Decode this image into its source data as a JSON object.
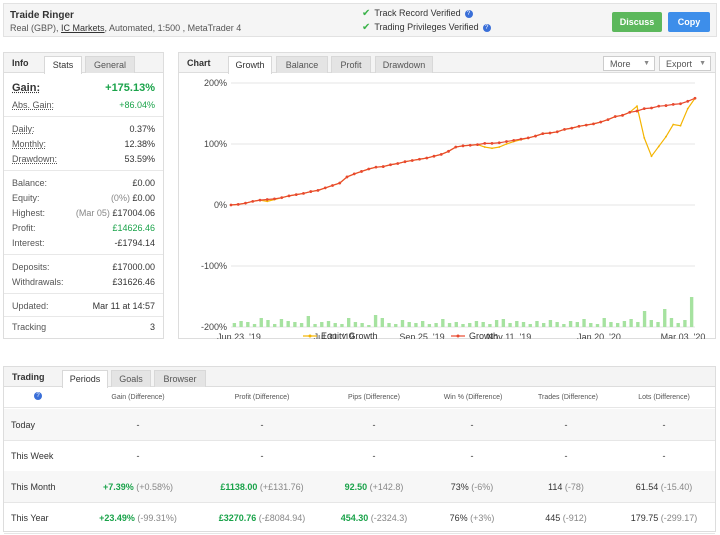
{
  "header": {
    "account_name": "Traide Ringer",
    "account_prefix": "Real (GBP),",
    "broker": "IC Markets",
    "account_suffix": ", Automated, 1:500 , MetaTrader 4",
    "verification": [
      "Track Record Verified",
      "Trading Privileges Verified"
    ],
    "discuss_label": "Discuss",
    "copy_label": "Copy"
  },
  "info_tabs": {
    "title": "Info",
    "tabs": [
      "Stats",
      "General"
    ]
  },
  "stats": {
    "gain_label": "Gain:",
    "gain_value": "+175.13%",
    "abs_gain_label": "Abs. Gain:",
    "abs_gain_value": "+86.04%",
    "daily_label": "Daily:",
    "daily_value": "0.37%",
    "monthly_label": "Monthly:",
    "monthly_value": "12.38%",
    "drawdown_label": "Drawdown:",
    "drawdown_value": "53.59%",
    "balance_label": "Balance:",
    "balance_value": "£0.00",
    "equity_label": "Equity:",
    "equity_pct": "(0%)",
    "equity_value": "£0.00",
    "highest_label": "Highest:",
    "highest_date": "(Mar 05)",
    "highest_value": "£17004.06",
    "profit_label": "Profit:",
    "profit_value": "£14626.46",
    "interest_label": "Interest:",
    "interest_value": "-£1794.14",
    "deposits_label": "Deposits:",
    "deposits_value": "£17000.00",
    "withdrawals_label": "Withdrawals:",
    "withdrawals_value": "£31626.46",
    "updated_label": "Updated:",
    "updated_value": "Mar 11 at 14:57",
    "tracking_label": "Tracking",
    "tracking_value": "3"
  },
  "chart_tabs": {
    "title": "Chart",
    "tabs": [
      "Growth",
      "Balance",
      "Profit",
      "Drawdown"
    ],
    "more": "More",
    "export": "Export"
  },
  "colors": {
    "growth": "#e8492f",
    "equity": "#f4b400",
    "bars": "#a6e2a0",
    "green": "#1aa34a",
    "accent": "#3d8eea"
  },
  "chart_data": {
    "type": "line",
    "yticks": [
      "200%",
      "100%",
      "0%",
      "-100%",
      "-200%"
    ],
    "ylim": [
      -200,
      200
    ],
    "xticks": [
      "Jun 23, '19",
      "Jul 31, '19",
      "Sep 25, '19",
      "Nov 11, '19",
      "Jan 20, '20",
      "Mar 03, '20"
    ],
    "series": [
      {
        "name": "Equity Growth",
        "values": [
          0,
          1,
          3,
          6,
          8,
          6,
          9,
          12,
          15,
          17,
          19,
          22,
          24,
          28,
          32,
          36,
          46,
          51,
          55,
          59,
          62,
          63,
          66,
          68,
          71,
          73,
          75,
          77,
          80,
          83,
          88,
          95,
          97,
          98,
          99,
          95,
          93,
          95,
          100,
          104,
          107,
          110,
          113,
          117,
          118,
          120,
          124,
          126,
          129,
          131,
          133,
          136,
          140,
          145,
          147,
          152,
          162,
          110,
          80,
          96,
          112,
          132,
          130,
          158,
          175
        ]
      },
      {
        "name": "Growth",
        "values": [
          0,
          1,
          3,
          6,
          8,
          9,
          10,
          12,
          15,
          17,
          19,
          22,
          24,
          28,
          32,
          36,
          46,
          51,
          55,
          59,
          62,
          63,
          66,
          68,
          71,
          73,
          75,
          77,
          80,
          83,
          88,
          95,
          97,
          98,
          99,
          101,
          101,
          102,
          104,
          106,
          108,
          110,
          113,
          117,
          118,
          120,
          124,
          126,
          129,
          131,
          133,
          136,
          140,
          145,
          147,
          152,
          154,
          158,
          159,
          162,
          163,
          165,
          166,
          170,
          175
        ]
      }
    ],
    "bars": [
      4,
      6,
      5,
      3,
      9,
      7,
      3,
      8,
      6,
      5,
      4,
      11,
      3,
      5,
      6,
      4,
      3,
      9,
      5,
      4,
      2,
      12,
      9,
      4,
      3,
      7,
      5,
      4,
      6,
      3,
      4,
      8,
      4,
      5,
      3,
      4,
      6,
      5,
      3,
      7,
      8,
      4,
      6,
      5,
      3,
      6,
      4,
      7,
      5,
      3,
      6,
      5,
      8,
      4,
      3,
      9,
      5,
      4,
      6,
      8,
      5,
      16,
      7,
      5,
      18,
      9,
      4,
      7,
      30
    ]
  },
  "trading_tabs": {
    "title": "Trading",
    "tabs": [
      "Periods",
      "Goals",
      "Browser"
    ]
  },
  "trading": {
    "headers": [
      "Gain (Difference)",
      "Profit (Difference)",
      "Pips (Difference)",
      "Win % (Difference)",
      "Trades (Difference)",
      "Lots (Difference)"
    ],
    "rows": [
      {
        "label": "Today",
        "gain": "-",
        "gain_d": "",
        "profit": "-",
        "profit_d": "",
        "pips": "-",
        "pips_d": "",
        "win": "-",
        "win_d": "",
        "trades": "-",
        "trades_d": "",
        "lots": "-",
        "lots_d": ""
      },
      {
        "label": "This Week",
        "gain": "-",
        "gain_d": "",
        "profit": "-",
        "profit_d": "",
        "pips": "-",
        "pips_d": "",
        "win": "-",
        "win_d": "",
        "trades": "-",
        "trades_d": "",
        "lots": "-",
        "lots_d": ""
      },
      {
        "label": "This Month",
        "gain": "+7.39%",
        "gain_d": "(+0.58%)",
        "profit": "£1138.00",
        "profit_d": "(+£131.76)",
        "pips": "92.50",
        "pips_d": "(+142.8)",
        "win": "73%",
        "win_d": "(-6%)",
        "trades": "114",
        "trades_d": "(-78)",
        "lots": "61.54",
        "lots_d": "(-15.40)"
      },
      {
        "label": "This Year",
        "gain": "+23.49%",
        "gain_d": "(-99.31%)",
        "profit": "£3270.76",
        "profit_d": "(-£8084.94)",
        "pips": "454.30",
        "pips_d": "(-2324.3)",
        "win": "76%",
        "win_d": "(+3%)",
        "trades": "445",
        "trades_d": "(-912)",
        "lots": "179.75",
        "lots_d": "(-299.17)"
      }
    ]
  }
}
